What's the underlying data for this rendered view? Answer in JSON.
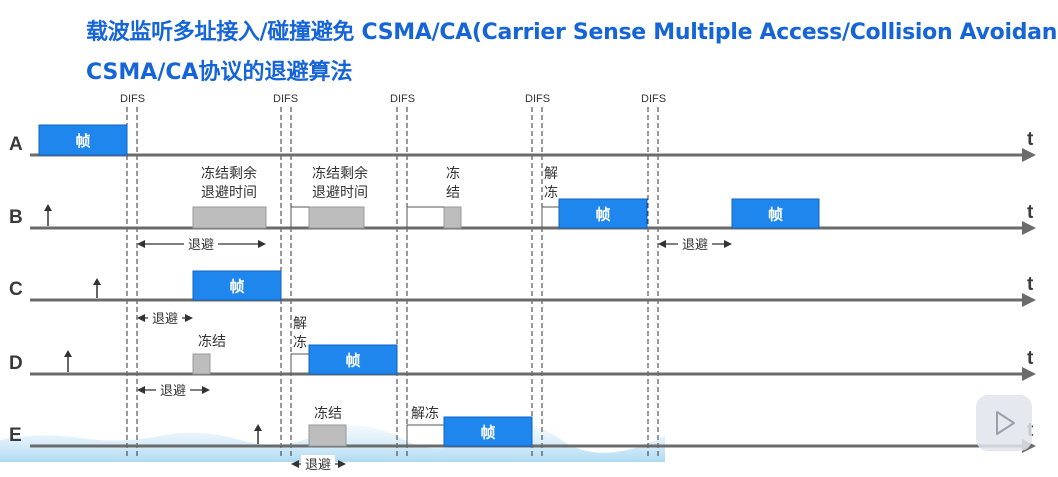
{
  "title": {
    "line1": "载波监听多址接入/碰撞避免 CSMA/CA(Carrier Sense Multiple Access/Collision Avoidance)",
    "line2": "CSMA/CA协议的退避算法"
  },
  "difs_label": "DIFS",
  "time_label": "t",
  "stations": [
    {
      "label": "A"
    },
    {
      "label": "B"
    },
    {
      "label": "C"
    },
    {
      "label": "D"
    },
    {
      "label": "E"
    }
  ],
  "labels": {
    "frame": "帧",
    "backoff": "退避",
    "freeze_remaining_line1": "冻结剩余",
    "freeze_remaining_line2": "退避时间",
    "freeze_v1": "冻",
    "freeze_v2": "结",
    "unfreeze_v1": "解",
    "unfreeze_v2": "冻",
    "freeze": "冻结",
    "unfreeze": "解冻"
  },
  "icons": {
    "play": "play-icon"
  },
  "colors": {
    "title": "#1565d8",
    "frame": "#1f86ee",
    "frame_border": "#0f62c4",
    "frozen": "#bdbdbd",
    "axis": "#6b6b6b",
    "dashed": "#333333"
  }
}
